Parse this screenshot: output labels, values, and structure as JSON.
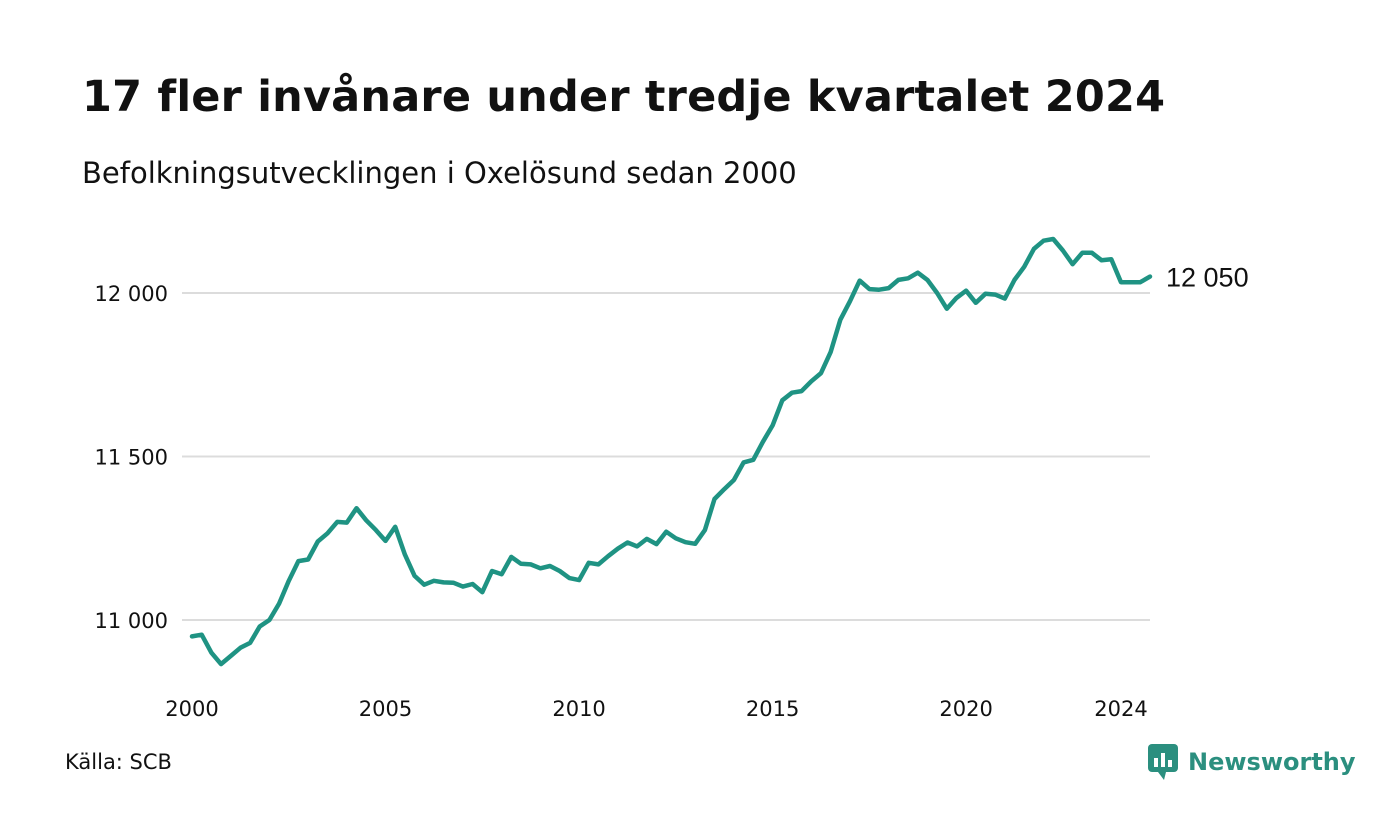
{
  "title": "17 fler invånare under tredje kvartalet 2024",
  "subtitle": "Befolkningsutvecklingen i Oxelösund sedan 2000",
  "source": "Källa: SCB",
  "brand": {
    "name": "Newsworthy",
    "icon": "newsworthy-logo-icon",
    "color": "#2b8f7f"
  },
  "chart_data": {
    "type": "line",
    "title": "17 fler invånare under tredje kvartalet 2024",
    "subtitle": "Befolkningsutvecklingen i Oxelösund sedan 2000",
    "xlabel": "",
    "ylabel": "",
    "line_color": "#1f9383",
    "grid": "horizontal",
    "xlim": [
      2000,
      2024.75
    ],
    "ylim": [
      10800,
      12200
    ],
    "y_ticks": [
      {
        "value": 11000,
        "label": "11 000"
      },
      {
        "value": 11500,
        "label": "11 500"
      },
      {
        "value": 12000,
        "label": "12 000"
      }
    ],
    "x_ticks": [
      {
        "value": 2000,
        "label": "2000"
      },
      {
        "value": 2005,
        "label": "2005"
      },
      {
        "value": 2010,
        "label": "2010"
      },
      {
        "value": 2015,
        "label": "2015"
      },
      {
        "value": 2020,
        "label": "2020"
      },
      {
        "value": 2024,
        "label": "2024"
      }
    ],
    "end_label": "12 050",
    "series": [
      {
        "x": [
          2000.0,
          2000.25,
          2000.5,
          2000.75,
          2001.0,
          2001.25,
          2001.5,
          2001.75,
          2002.0,
          2002.25,
          2002.5,
          2002.75,
          2003.0,
          2003.25,
          2003.5,
          2003.75,
          2004.0,
          2004.25,
          2004.5,
          2004.75,
          2005.0,
          2005.25,
          2005.5,
          2005.75,
          2006.0,
          2006.25,
          2006.5,
          2006.75,
          2007.0,
          2007.25,
          2007.5,
          2007.75,
          2008.0,
          2008.25,
          2008.5,
          2008.75,
          2009.0,
          2009.25,
          2009.5,
          2009.75,
          2010.0,
          2010.25,
          2010.5,
          2010.75,
          2011.0,
          2011.25,
          2011.5,
          2011.75,
          2012.0,
          2012.25,
          2012.5,
          2012.75,
          2013.0,
          2013.25,
          2013.5,
          2013.75,
          2014.0,
          2014.25,
          2014.5,
          2014.75,
          2015.0,
          2015.25,
          2015.5,
          2015.75,
          2016.0,
          2016.25,
          2016.5,
          2016.75,
          2017.0,
          2017.25,
          2017.5,
          2017.75,
          2018.0,
          2018.25,
          2018.5,
          2018.75,
          2019.0,
          2019.25,
          2019.5,
          2019.75,
          2020.0,
          2020.25,
          2020.5,
          2020.75,
          2021.0,
          2021.25,
          2021.5,
          2021.75,
          2022.0,
          2022.25,
          2022.5,
          2022.75,
          2023.0,
          2023.25,
          2023.5,
          2023.75,
          2024.0,
          2024.25,
          2024.5,
          2024.75
        ],
        "values": [
          10950,
          10955,
          10900,
          10865,
          10890,
          10915,
          10930,
          10980,
          11000,
          11050,
          11120,
          11180,
          11185,
          11240,
          11265,
          11300,
          11298,
          11342,
          11305,
          11275,
          11242,
          11285,
          11200,
          11135,
          11108,
          11120,
          11115,
          11114,
          11102,
          11110,
          11085,
          11150,
          11140,
          11193,
          11172,
          11170,
          11158,
          11165,
          11150,
          11128,
          11122,
          11175,
          11170,
          11195,
          11218,
          11237,
          11225,
          11248,
          11232,
          11270,
          11250,
          11238,
          11233,
          11275,
          11370,
          11400,
          11428,
          11482,
          11490,
          11545,
          11595,
          11672,
          11695,
          11700,
          11730,
          11755,
          11820,
          11918,
          11975,
          12038,
          12012,
          12010,
          12015,
          12040,
          12045,
          12062,
          12040,
          12000,
          11952,
          11985,
          12007,
          11970,
          11998,
          11995,
          11983,
          12040,
          12080,
          12135,
          12160,
          12165,
          12130,
          12088,
          12123,
          12123,
          12100,
          12103,
          12033,
          12033,
          12033,
          12050
        ]
      }
    ]
  }
}
